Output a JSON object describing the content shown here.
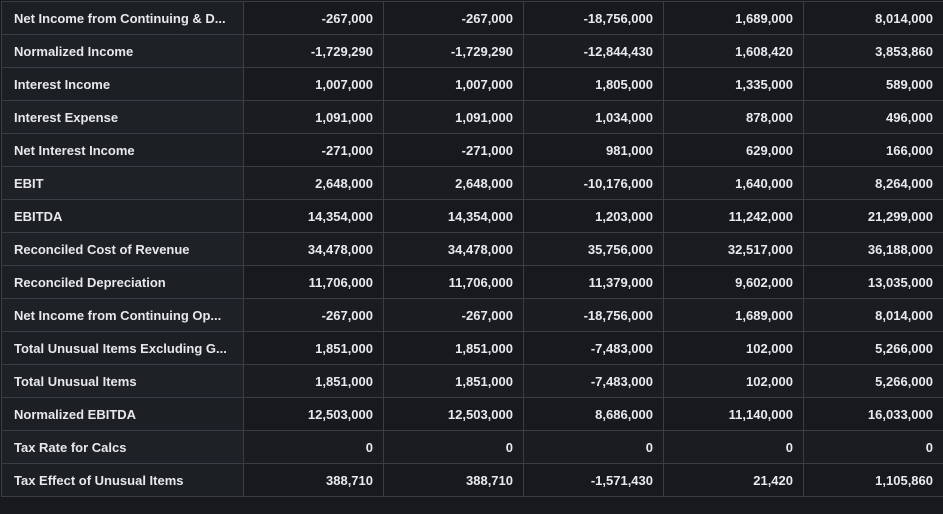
{
  "table": {
    "rows": [
      {
        "label": "Net Income from Continuing & D...",
        "values": [
          "-267,000",
          "-267,000",
          "-18,756,000",
          "1,689,000",
          "8,014,000"
        ]
      },
      {
        "label": "Normalized Income",
        "values": [
          "-1,729,290",
          "-1,729,290",
          "-12,844,430",
          "1,608,420",
          "3,853,860"
        ]
      },
      {
        "label": "Interest Income",
        "values": [
          "1,007,000",
          "1,007,000",
          "1,805,000",
          "1,335,000",
          "589,000"
        ]
      },
      {
        "label": "Interest Expense",
        "values": [
          "1,091,000",
          "1,091,000",
          "1,034,000",
          "878,000",
          "496,000"
        ]
      },
      {
        "label": "Net Interest Income",
        "values": [
          "-271,000",
          "-271,000",
          "981,000",
          "629,000",
          "166,000"
        ]
      },
      {
        "label": "EBIT",
        "values": [
          "2,648,000",
          "2,648,000",
          "-10,176,000",
          "1,640,000",
          "8,264,000"
        ]
      },
      {
        "label": "EBITDA",
        "values": [
          "14,354,000",
          "14,354,000",
          "1,203,000",
          "11,242,000",
          "21,299,000"
        ]
      },
      {
        "label": "Reconciled Cost of Revenue",
        "values": [
          "34,478,000",
          "34,478,000",
          "35,756,000",
          "32,517,000",
          "36,188,000"
        ]
      },
      {
        "label": "Reconciled Depreciation",
        "values": [
          "11,706,000",
          "11,706,000",
          "11,379,000",
          "9,602,000",
          "13,035,000"
        ]
      },
      {
        "label": "Net Income from Continuing Op...",
        "values": [
          "-267,000",
          "-267,000",
          "-18,756,000",
          "1,689,000",
          "8,014,000"
        ]
      },
      {
        "label": "Total Unusual Items Excluding G...",
        "values": [
          "1,851,000",
          "1,851,000",
          "-7,483,000",
          "102,000",
          "5,266,000"
        ]
      },
      {
        "label": "Total Unusual Items",
        "values": [
          "1,851,000",
          "1,851,000",
          "-7,483,000",
          "102,000",
          "5,266,000"
        ]
      },
      {
        "label": "Normalized EBITDA",
        "values": [
          "12,503,000",
          "12,503,000",
          "8,686,000",
          "11,140,000",
          "16,033,000"
        ]
      },
      {
        "label": "Tax Rate for Calcs",
        "values": [
          "0",
          "0",
          "0",
          "0",
          "0"
        ]
      },
      {
        "label": "Tax Effect of Unusual Items",
        "values": [
          "388,710",
          "388,710",
          "-1,571,430",
          "21,420",
          "1,105,860"
        ]
      }
    ]
  },
  "colors": {
    "background": "#17191d",
    "label_background": "#1c1f24",
    "border": "#3a3d44",
    "text": "#e8eaee"
  }
}
